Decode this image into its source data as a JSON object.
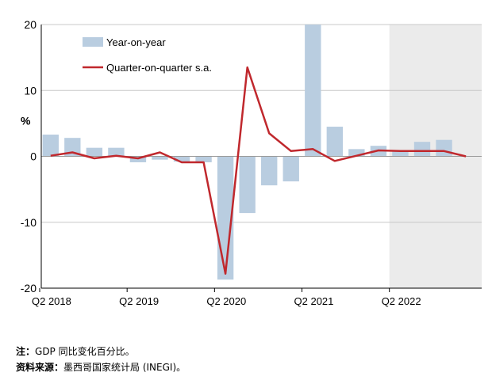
{
  "chart_data": {
    "type": "bar",
    "ylabel": "%",
    "ylim": [
      -20,
      20
    ],
    "yticks": [
      -20,
      -10,
      0,
      10,
      20
    ],
    "grid": true,
    "legend_position": "top-left",
    "x_tick_labels": [
      "Q2 2018",
      "Q2 2019",
      "Q2 2020",
      "Q2 2021",
      "Q2 2022"
    ],
    "x_tick_index": [
      0,
      4,
      8,
      12,
      16
    ],
    "categories": [
      "Q2 2018",
      "Q3 2018",
      "Q4 2018",
      "Q1 2019",
      "Q2 2019",
      "Q3 2019",
      "Q4 2019",
      "Q1 2020",
      "Q2 2020",
      "Q3 2020",
      "Q4 2020",
      "Q1 2021",
      "Q2 2021",
      "Q3 2021",
      "Q4 2021",
      "Q1 2022",
      "Q2 2022",
      "Q3 2022",
      "Q4 2022",
      "Q1 2023"
    ],
    "shaded_from_index": 16,
    "series": [
      {
        "name": "Year-on-year",
        "type": "bar",
        "color": "#b9cde0",
        "values": [
          3.3,
          2.8,
          1.3,
          1.3,
          -0.9,
          -0.5,
          -0.8,
          -0.9,
          -18.7,
          -8.6,
          -4.4,
          -3.8,
          20.0,
          4.5,
          1.1,
          1.6,
          0.8,
          2.2,
          2.5,
          null
        ]
      },
      {
        "name": "Quarter-on-quarter s.a.",
        "type": "line",
        "color": "#c0282d",
        "values": [
          0.1,
          0.6,
          -0.3,
          0.1,
          -0.3,
          0.6,
          -0.9,
          -0.9,
          -17.8,
          13.5,
          3.5,
          0.8,
          1.1,
          -0.7,
          0.1,
          0.9,
          0.8,
          0.8,
          0.8,
          0.0
        ]
      }
    ]
  },
  "colors": {
    "shade": "#ebebeb",
    "grid": "#c8c8c8",
    "axis": "#000000"
  },
  "footnotes": {
    "note_label": "注：",
    "note_text": "GDP 同比变化百分比。",
    "source_label": "资料来源：",
    "source_text": "墨西哥国家统计局 (INEGI)。"
  }
}
